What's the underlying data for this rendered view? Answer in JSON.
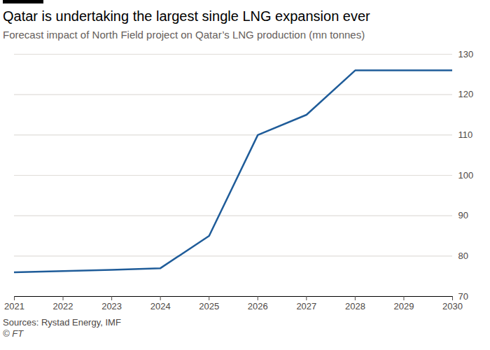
{
  "chart_data": {
    "type": "line",
    "title": "Qatar is undertaking the largest single LNG expansion ever",
    "subtitle": "Forecast impact of North Field project on Qatar’s LNG production (mn tonnes)",
    "source": "Sources: Rystad Energy, IMF",
    "credit": "© FT",
    "x": [
      2021,
      2022,
      2023,
      2024,
      2025,
      2026,
      2027,
      2028,
      2029,
      2030
    ],
    "values": [
      76,
      76.3,
      76.6,
      77,
      85,
      110,
      115,
      126,
      126,
      126
    ],
    "color": "#1f5c99",
    "xlim": [
      2021,
      2030
    ],
    "xticks": [
      2021,
      2022,
      2023,
      2024,
      2025,
      2026,
      2027,
      2028,
      2029,
      2030
    ],
    "ylim": [
      70,
      130
    ],
    "yticks": [
      70,
      80,
      90,
      100,
      110,
      120,
      130
    ],
    "grid": true
  }
}
